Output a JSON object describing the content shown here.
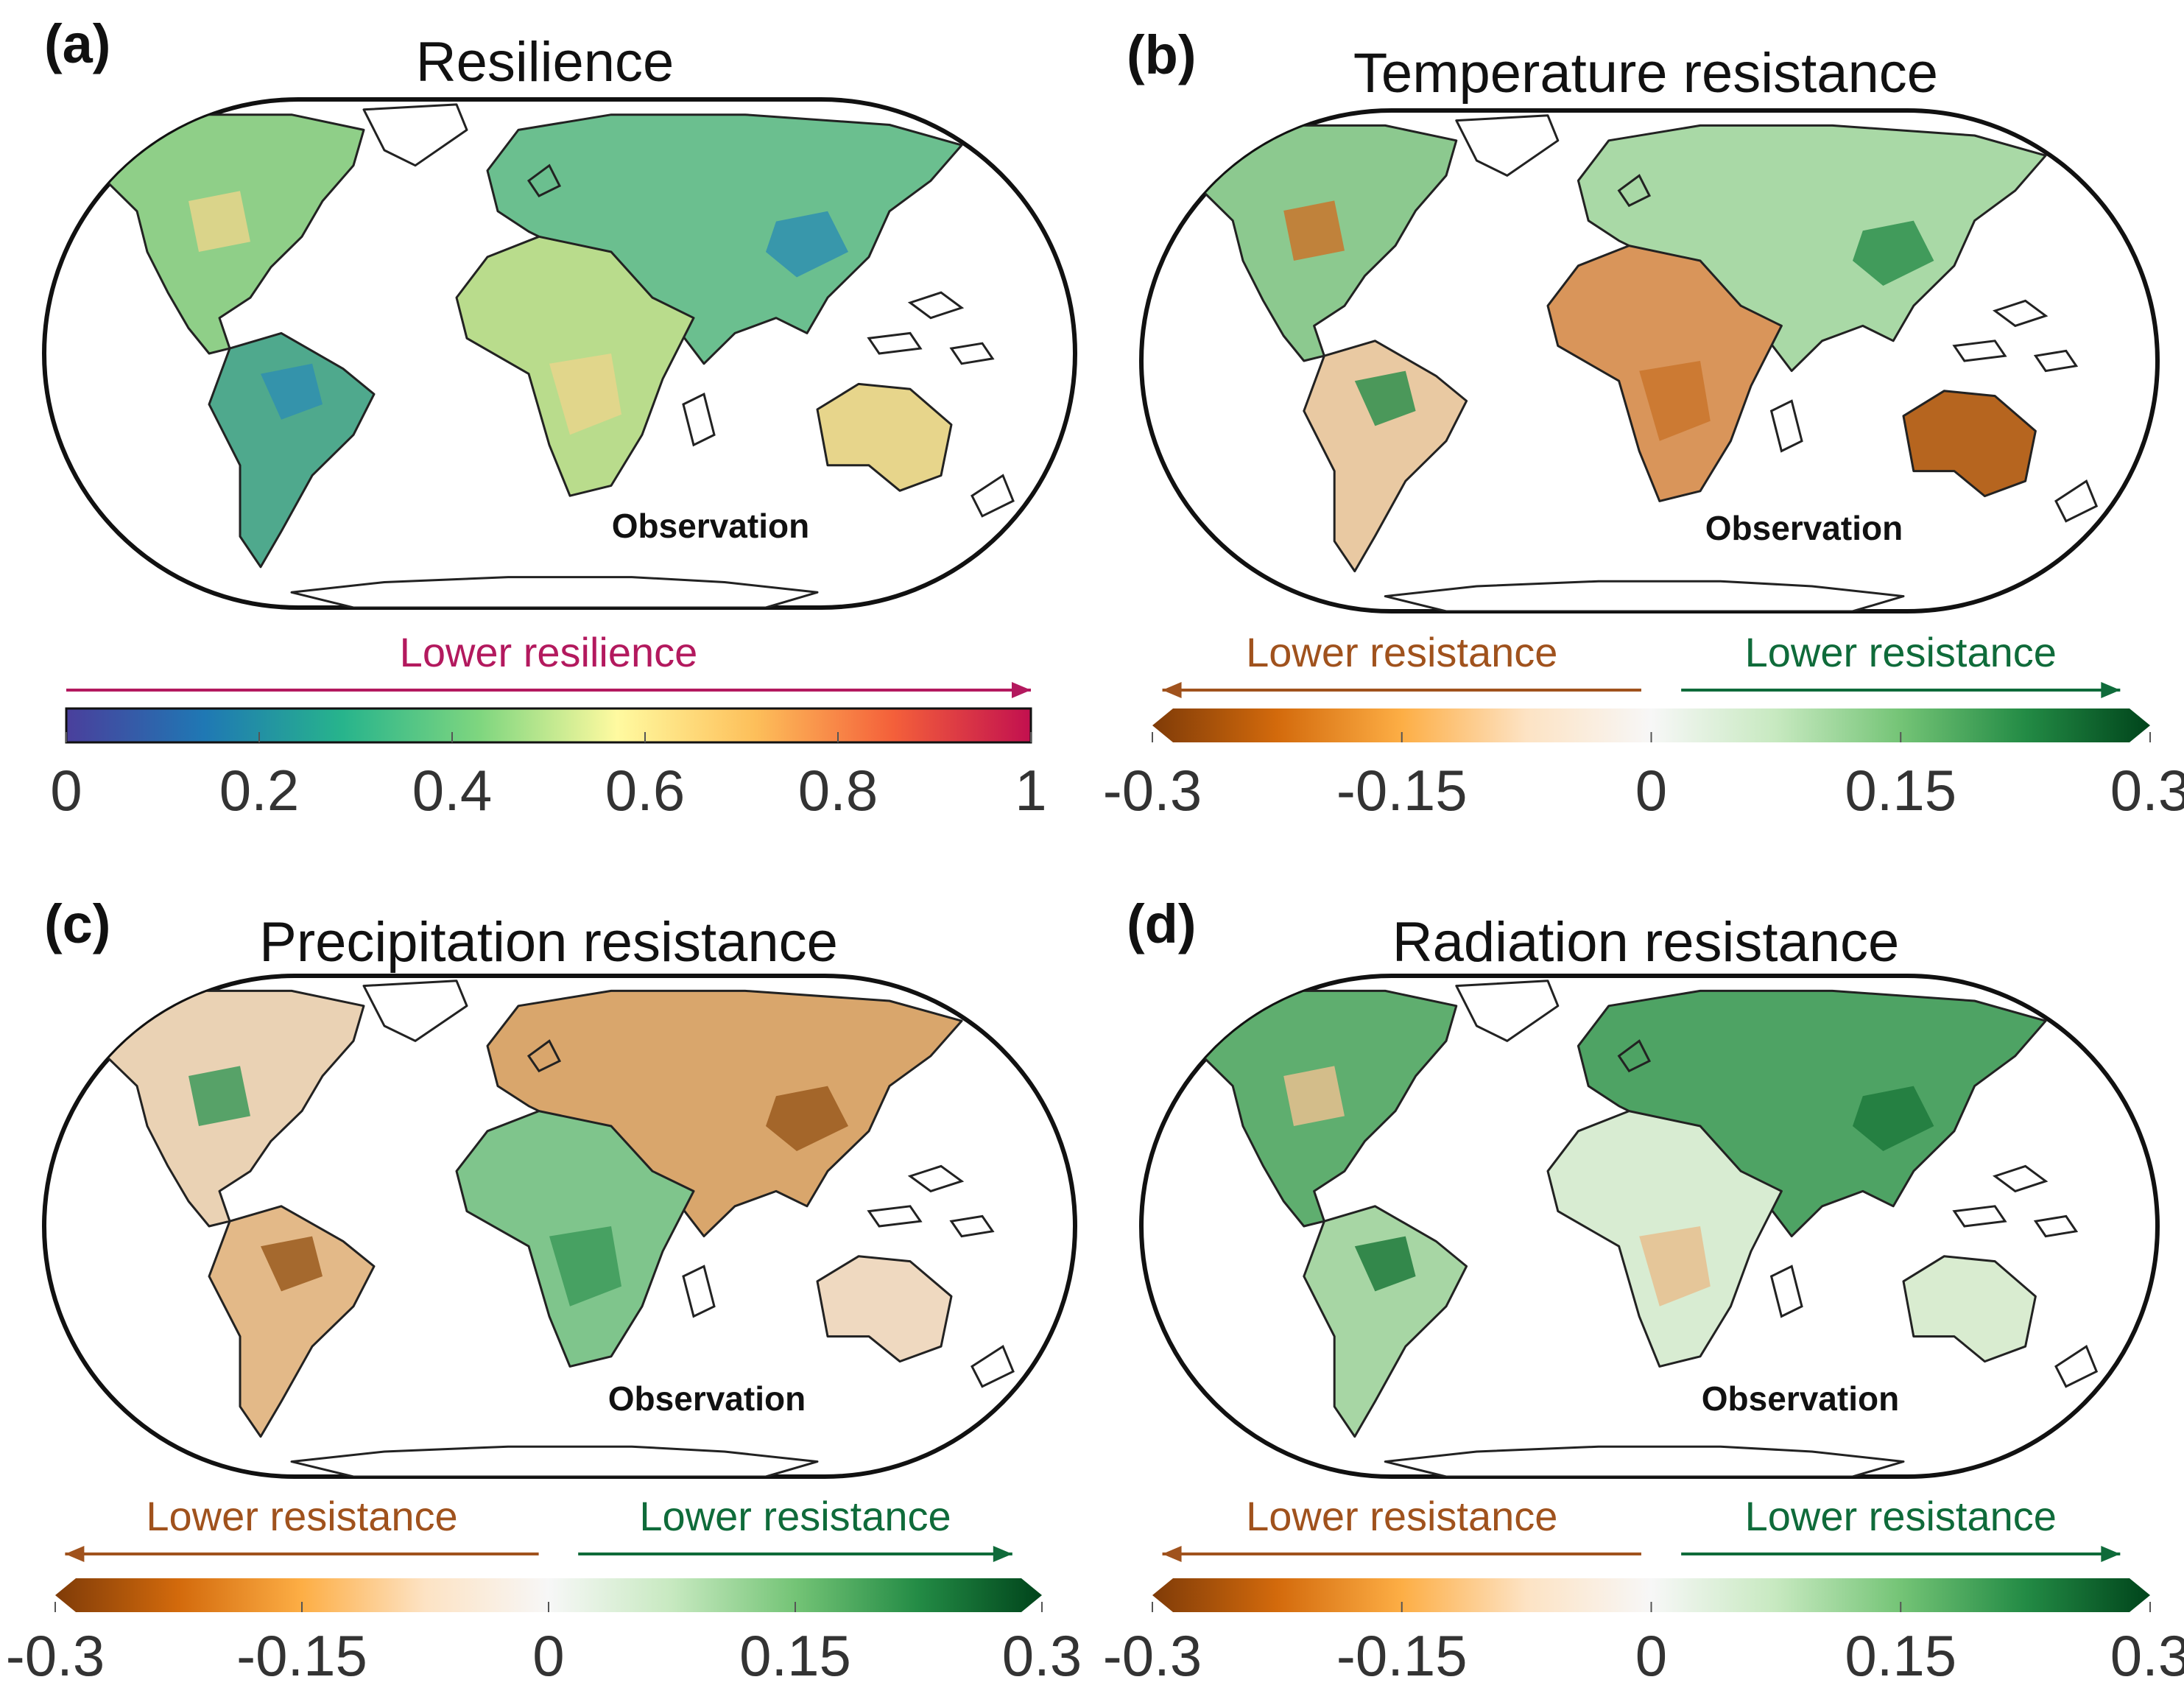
{
  "figure": {
    "panels": [
      {
        "letter": "(a)",
        "title": "Resilience",
        "annotation": "Observation",
        "colorbar": {
          "type": "sequential",
          "arrows": [
            {
              "text": "Lower resilience",
              "direction": "right",
              "color": "#b3195e"
            }
          ],
          "ticks": [
            "0",
            "0.2",
            "0.4",
            "0.6",
            "0.8",
            "1"
          ],
          "stops": [
            "#4a3f9c",
            "#1f78b4",
            "#27b48c",
            "#7fd67f",
            "#fffaa0",
            "#fdbf5a",
            "#f4603a",
            "#c2104f"
          ]
        },
        "palette": {
          "north_america": "#8fcf88",
          "south_america": "#4fa98d",
          "greenland": "#ffffff",
          "eurasia": "#6bbf8f",
          "africa": "#b9dc8c",
          "australia": "#e7d58b",
          "antarctica": "#ffffff",
          "patch_a": "#2f8fb0",
          "patch_b": "#e7d58b"
        }
      },
      {
        "letter": "(b)",
        "title": "Temperature resistance",
        "annotation": "Observation",
        "colorbar": {
          "type": "diverging",
          "arrows": [
            {
              "text": "Lower resistance",
              "direction": "left",
              "color": "#a0521d"
            },
            {
              "text": "Lower resistance",
              "direction": "right",
              "color": "#0f6b3a"
            }
          ],
          "ticks": [
            "-0.3",
            "-0.15",
            "0",
            "0.15",
            "0.3"
          ],
          "stops": [
            "#7f3b08",
            "#d36a0c",
            "#fdae45",
            "#fde3c4",
            "#f7f7f7",
            "#c7e9c0",
            "#74c476",
            "#238b45",
            "#00441b"
          ]
        },
        "palette": {
          "north_america": "#8cc98f",
          "south_america": "#e9c9a2",
          "greenland": "#ffffff",
          "eurasia": "#a9d9a6",
          "africa": "#d9955a",
          "australia": "#b6651f",
          "antarctica": "#ffffff",
          "patch_a": "#2f8f4e",
          "patch_b": "#c9752d"
        }
      },
      {
        "letter": "(c)",
        "title": "Precipitation resistance",
        "annotation": "Observation",
        "colorbar": {
          "type": "diverging",
          "arrows": [
            {
              "text": "Lower resistance",
              "direction": "left",
              "color": "#a0521d"
            },
            {
              "text": "Lower resistance",
              "direction": "right",
              "color": "#0f6b3a"
            }
          ],
          "ticks": [
            "-0.3",
            "-0.15",
            "0",
            "0.15",
            "0.3"
          ],
          "stops": [
            "#7f3b08",
            "#d36a0c",
            "#fdae45",
            "#fde3c4",
            "#f7f7f7",
            "#c7e9c0",
            "#74c476",
            "#238b45",
            "#00441b"
          ]
        },
        "palette": {
          "north_america": "#ead2b4",
          "south_america": "#e3b988",
          "greenland": "#ffffff",
          "eurasia": "#d9a66c",
          "africa": "#7fc58c",
          "australia": "#efd9c0",
          "antarctica": "#ffffff",
          "patch_a": "#9a5a1e",
          "patch_b": "#3d9a5a"
        }
      },
      {
        "letter": "(d)",
        "title": "Radiation resistance",
        "annotation": "Observation",
        "colorbar": {
          "type": "diverging",
          "arrows": [
            {
              "text": "Lower resistance",
              "direction": "left",
              "color": "#a0521d"
            },
            {
              "text": "Lower resistance",
              "direction": "right",
              "color": "#0f6b3a"
            }
          ],
          "ticks": [
            "-0.3",
            "-0.15",
            "0",
            "0.15",
            "0.3"
          ],
          "stops": [
            "#7f3b08",
            "#d36a0c",
            "#fdae45",
            "#fde3c4",
            "#f7f7f7",
            "#c7e9c0",
            "#74c476",
            "#238b45",
            "#00441b"
          ]
        },
        "palette": {
          "north_america": "#5fae6f",
          "south_america": "#a7d6a4",
          "greenland": "#ffffff",
          "eurasia": "#4ea364",
          "africa": "#d8ecd2",
          "australia": "#d9ecd0",
          "antarctica": "#ffffff",
          "patch_a": "#1f7a3c",
          "patch_b": "#e8c08f"
        }
      }
    ]
  }
}
